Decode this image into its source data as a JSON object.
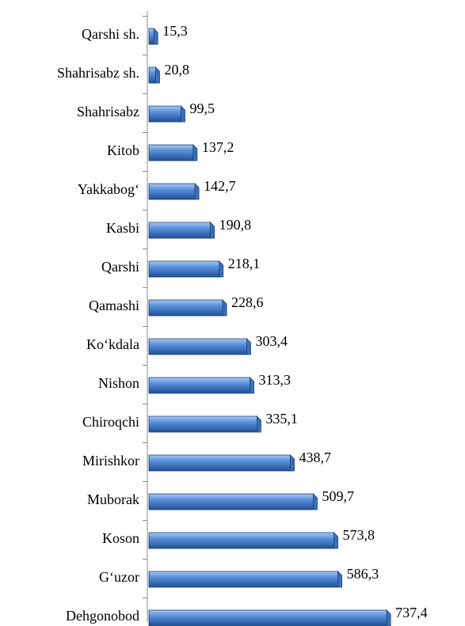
{
  "chart_data": {
    "type": "bar",
    "orientation": "horizontal",
    "categories": [
      "Qarshi sh.",
      "Shahrisabz sh.",
      "Shahrisabz",
      "Kitob",
      "Yakkabog‘",
      "Kasbi",
      "Qarshi",
      "Qamashi",
      "Ko‘kdala",
      "Nishon",
      "Chiroqchi",
      "Mirishkor",
      "Muborak",
      "Koson",
      "G‘uzor",
      "Dehgonobod"
    ],
    "values": [
      15.3,
      20.8,
      99.5,
      137.2,
      142.7,
      190.8,
      218.1,
      228.6,
      303.4,
      313.3,
      335.1,
      438.7,
      509.7,
      573.8,
      586.3,
      737.4
    ],
    "value_labels": [
      "15,3",
      "20,8",
      "99,5",
      "137,2",
      "142,7",
      "190,8",
      "218,1",
      "228,6",
      "303,4",
      "313,3",
      "335,1",
      "438,7",
      "509,7",
      "573,8",
      "586,3",
      "737,4"
    ],
    "color": "#2f6fc0"
  }
}
